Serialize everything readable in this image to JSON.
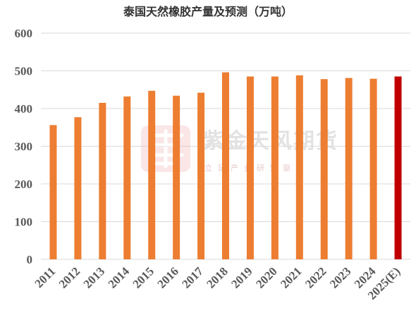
{
  "watermark": {
    "name": "紫金天风期货",
    "slogan": "立 足 产 业   研 究 驱 动"
  },
  "colors": {
    "bar": "#ed7d31",
    "highlight": "#c00000",
    "grid": "#d9d9d9"
  },
  "chart_data": {
    "type": "bar",
    "title": "泰国天然橡胶产量及预测（万吨）",
    "xlabel": "",
    "ylabel": "",
    "ylim": [
      0,
      600
    ],
    "yticks": [
      0,
      100,
      200,
      300,
      400,
      500,
      600
    ],
    "grid": true,
    "legend": "none",
    "categories": [
      "2011",
      "2012",
      "2013",
      "2014",
      "2015",
      "2016",
      "2017",
      "2018",
      "2019",
      "2020",
      "2021",
      "2022",
      "2023",
      "2024",
      "2025(E)"
    ],
    "series": [
      {
        "values": [
          356,
          377,
          415,
          432,
          447,
          434,
          442,
          496,
          485,
          485,
          488,
          478,
          481,
          479,
          485
        ],
        "highlight_index": 14
      }
    ]
  }
}
